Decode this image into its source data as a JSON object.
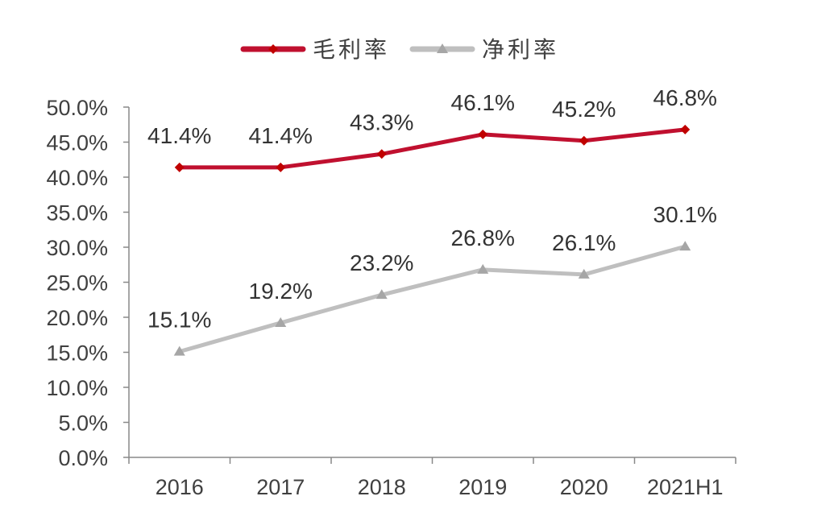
{
  "chart_data": {
    "type": "line",
    "categories": [
      "2016",
      "2017",
      "2018",
      "2019",
      "2020",
      "2021H1"
    ],
    "series": [
      {
        "name": "毛利率",
        "values": [
          41.4,
          41.4,
          43.3,
          46.1,
          45.2,
          46.8
        ],
        "labels": [
          "41.4%",
          "41.4%",
          "43.3%",
          "46.1%",
          "45.2%",
          "46.8%"
        ],
        "color": "#c0102f",
        "marker": "diamond",
        "marker_color": "#c00000"
      },
      {
        "name": "净利率",
        "values": [
          15.1,
          19.2,
          23.2,
          26.8,
          26.1,
          30.1
        ],
        "labels": [
          "15.1%",
          "19.2%",
          "23.2%",
          "26.8%",
          "26.1%",
          "30.1%"
        ],
        "color": "#bfbfbf",
        "marker": "triangle",
        "marker_color": "#a6a6a6"
      }
    ],
    "ylim": [
      0,
      50
    ],
    "yticks": [
      "0.0%",
      "5.0%",
      "10.0%",
      "15.0%",
      "20.0%",
      "25.0%",
      "30.0%",
      "35.0%",
      "40.0%",
      "45.0%",
      "50.0%"
    ],
    "grid": false,
    "legend_position": "top-center",
    "data_labels": true
  }
}
